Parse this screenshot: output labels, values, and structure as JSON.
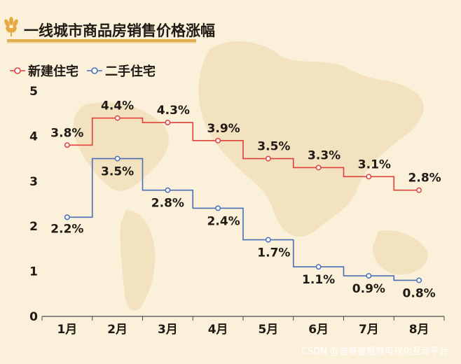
{
  "title": "一线城市商品房销售价格涨幅",
  "watermark": "CSDN @迪赛智慧数可视化互动平台",
  "colors": {
    "background": "#fbf0d9",
    "map": "#f3e3c1",
    "axis": "#4a4a4a",
    "title_bar": "#e0ad4f",
    "logo": "#e6a840"
  },
  "chart_data": {
    "type": "line",
    "step": true,
    "categories": [
      "1月",
      "2月",
      "3月",
      "4月",
      "5月",
      "6月",
      "7月",
      "8月"
    ],
    "ylim": [
      0,
      5
    ],
    "yticks": [
      0,
      1,
      2,
      3,
      4,
      5
    ],
    "grid": false,
    "legend_position": "top-left",
    "series": [
      {
        "name": "新建住宅",
        "color": "#e0403c",
        "values": [
          3.8,
          4.4,
          4.3,
          3.9,
          3.5,
          3.3,
          3.1,
          2.8
        ],
        "labels": [
          "3.8%",
          "4.4%",
          "4.3%",
          "3.9%",
          "3.5%",
          "3.3%",
          "3.1%",
          "2.8%"
        ]
      },
      {
        "name": "二手住宅",
        "color": "#4a6fb8",
        "values": [
          2.2,
          3.5,
          2.8,
          2.4,
          1.7,
          1.1,
          0.9,
          0.8
        ],
        "labels": [
          "2.2%",
          "3.5%",
          "2.8%",
          "2.4%",
          "1.7%",
          "1.1%",
          "0.9%",
          "0.8%"
        ]
      }
    ]
  }
}
